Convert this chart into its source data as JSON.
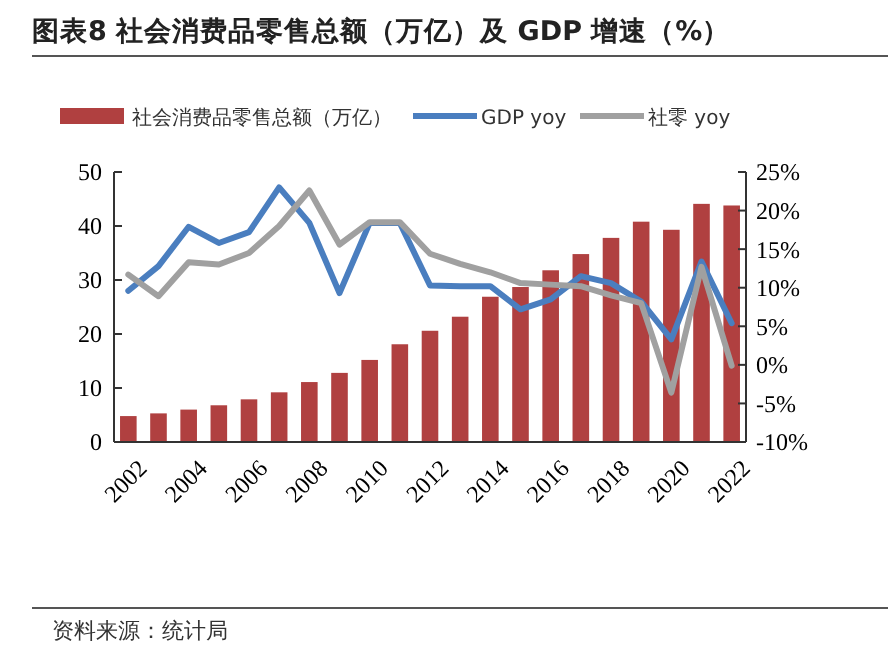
{
  "chart_data": {
    "type": "bar",
    "title": "图表8 社会消费品零售总额（万亿）及 GDP 增速（%）",
    "categories": [
      "2002",
      null,
      "2004",
      null,
      "2006",
      null,
      "2008",
      null,
      "2010",
      null,
      "2012",
      null,
      "2014",
      null,
      "2016",
      null,
      "2018",
      null,
      "2020",
      null,
      "2022"
    ],
    "series": [
      {
        "name": "社会消费品零售总额（万亿）",
        "color": "#b04040",
        "values": [
          4.8,
          5.3,
          6.0,
          6.8,
          7.9,
          9.2,
          11.1,
          12.8,
          15.2,
          18.1,
          20.6,
          23.2,
          26.9,
          28.7,
          31.8,
          34.8,
          37.8,
          40.8,
          39.3,
          44.1,
          43.8
        ]
      },
      {
        "name": "GDP yoy",
        "type": "line",
        "axis": "y2",
        "color": "#4a7ebf",
        "values": [
          9.6,
          12.8,
          17.9,
          15.8,
          17.2,
          23.0,
          18.4,
          9.3,
          18.4,
          18.4,
          10.3,
          10.2,
          10.2,
          7.2,
          8.5,
          11.5,
          10.6,
          8.2,
          3.3,
          13.4,
          5.4
        ]
      },
      {
        "name": "社零 yoy",
        "type": "line",
        "axis": "y2",
        "color": "#a0a0a0",
        "values": [
          11.7,
          8.9,
          13.3,
          13.0,
          14.5,
          18.0,
          22.6,
          15.6,
          18.5,
          18.5,
          14.4,
          13.1,
          12.0,
          10.6,
          10.4,
          10.2,
          9.0,
          8.0,
          -3.6,
          12.7,
          -0.1
        ]
      }
    ],
    "ylim": [
      0,
      50
    ],
    "yticks": [
      0,
      10,
      20,
      30,
      40,
      50
    ],
    "y2lim": [
      -10,
      25
    ],
    "y2ticks": [
      {
        "value": -10,
        "label": "-10%"
      },
      {
        "value": -5,
        "label": "-5%"
      },
      {
        "value": 0,
        "label": "0%"
      },
      {
        "value": 5,
        "label": "5%"
      },
      {
        "value": 10,
        "label": "10%"
      },
      {
        "value": 15,
        "label": "15%"
      },
      {
        "value": 20,
        "label": "20%"
      },
      {
        "value": 25,
        "label": "25%"
      }
    ],
    "legend": "top",
    "annotations": [
      "资料来源：统计局"
    ]
  }
}
